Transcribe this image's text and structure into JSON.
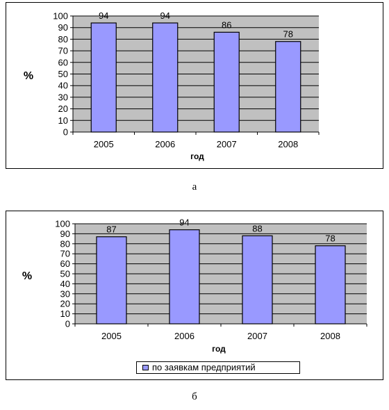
{
  "chart_data": [
    {
      "type": "bar",
      "categories": [
        "2005",
        "2006",
        "2007",
        "2008"
      ],
      "values": [
        94,
        94,
        86,
        78
      ],
      "data_labels": [
        "94",
        "94",
        "86",
        "78"
      ],
      "title": "",
      "xlabel": "год",
      "ylabel": "%",
      "ylim": [
        0,
        100
      ],
      "yticks": [
        "0",
        "10",
        "20",
        "30",
        "40",
        "50",
        "60",
        "70",
        "80",
        "90",
        "100"
      ],
      "grid": true,
      "bar_color": "#9999ff",
      "plot_background": "#c0c0c0"
    },
    {
      "type": "bar",
      "categories": [
        "2005",
        "2006",
        "2007",
        "2008"
      ],
      "series": [
        {
          "name": "по заявкам предприятий",
          "values": [
            87,
            94,
            88,
            78
          ]
        }
      ],
      "data_labels": [
        "87",
        "94",
        "88",
        "78"
      ],
      "title": "",
      "xlabel": "год",
      "ylabel": "%",
      "ylim": [
        0,
        100
      ],
      "yticks": [
        "0",
        "10",
        "20",
        "30",
        "40",
        "50",
        "60",
        "70",
        "80",
        "90",
        "100"
      ],
      "grid": true,
      "legend": "bottom",
      "bar_color": "#9999ff",
      "plot_background": "#c0c0c0"
    }
  ],
  "captions": [
    "а",
    "б"
  ]
}
